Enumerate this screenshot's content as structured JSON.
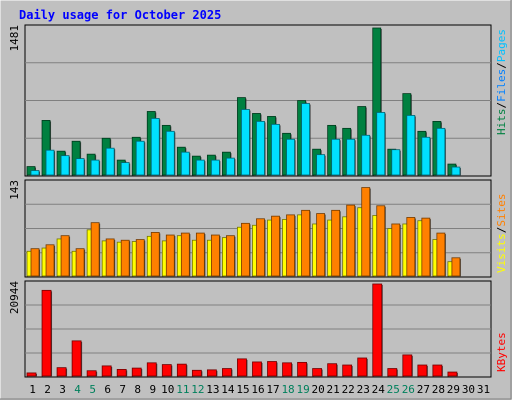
{
  "chart_data": {
    "type": "bar",
    "title": "Daily usage for October 2025",
    "categories": [
      "1",
      "2",
      "3",
      "4",
      "5",
      "6",
      "7",
      "8",
      "9",
      "10",
      "11",
      "12",
      "13",
      "14",
      "15",
      "16",
      "17",
      "18",
      "19",
      "20",
      "21",
      "22",
      "23",
      "24",
      "25",
      "26",
      "27",
      "28",
      "29",
      "30",
      "31"
    ],
    "weekend_days": [
      "4",
      "5",
      "11",
      "12",
      "18",
      "19",
      "25",
      "26"
    ],
    "panels": [
      {
        "name": "hits-files-pages",
        "ymax_label": "1481",
        "ymax": 1481,
        "series": [
          {
            "name": "Hits",
            "color": "#008040",
            "values": [
              85,
              550,
              240,
              340,
              210,
              370,
              150,
              380,
              640,
              500,
              280,
              190,
              200,
              230,
              780,
              620,
              590,
              420,
              750,
              260,
              500,
              470,
              690,
              1481,
              260,
              820,
              440,
              540,
              110,
              0,
              0
            ]
          },
          {
            "name": "Files",
            "color": "#00e0ff",
            "values": [
              45,
              250,
              195,
              165,
              150,
              270,
              125,
              340,
              570,
              440,
              230,
              150,
              150,
              170,
              660,
              540,
              510,
              360,
              720,
              205,
              360,
              360,
              400,
              630,
              255,
              600,
              380,
              470,
              80,
              0,
              0
            ]
          },
          {
            "name": "Pages",
            "color": "#00c0ff",
            "values": [
              0,
              0,
              0,
              0,
              0,
              0,
              0,
              0,
              0,
              0,
              0,
              0,
              0,
              0,
              0,
              0,
              0,
              0,
              0,
              0,
              0,
              0,
              0,
              0,
              0,
              0,
              0,
              0,
              0,
              0,
              0
            ]
          }
        ]
      },
      {
        "name": "visits-sites",
        "ymax_label": "143",
        "ymax": 143,
        "series": [
          {
            "name": "Visits",
            "color": "#ffff00",
            "values": [
              38,
              43,
              57,
              38,
              71,
              54,
              52,
              53,
              61,
              54,
              62,
              55,
              55,
              59,
              75,
              78,
              86,
              87,
              94,
              80,
              86,
              91,
              105,
              93,
              73,
              80,
              85,
              56,
              22,
              0,
              0
            ]
          },
          {
            "name": "Sites",
            "color": "#ff8000",
            "values": [
              42,
              48,
              62,
              42,
              82,
              57,
              55,
              56,
              67,
              63,
              66,
              66,
              63,
              62,
              81,
              88,
              92,
              94,
              101,
              96,
              101,
              109,
              136,
              108,
              80,
              90,
              89,
              66,
              28,
              0,
              0
            ]
          }
        ]
      },
      {
        "name": "kbytes",
        "ymax_label": "20944",
        "ymax": 20944,
        "series": [
          {
            "name": "KBytes",
            "color": "#ff0000",
            "values": [
              700,
              19500,
              1900,
              8000,
              1200,
              2300,
              1500,
              1800,
              3000,
              2600,
              2700,
              1300,
              1400,
              1700,
              3900,
              3200,
              3300,
              3000,
              3100,
              1700,
              2800,
              2500,
              4100,
              20944,
              1700,
              4800,
              2500,
              2500,
              900,
              0,
              0
            ]
          }
        ]
      }
    ],
    "legends": {
      "top": [
        {
          "label": "Hits",
          "color": "#008040"
        },
        {
          "label": "/",
          "color": "#000000"
        },
        {
          "label": "Files",
          "color": "#0080ff"
        },
        {
          "label": "/",
          "color": "#000000"
        },
        {
          "label": "Pages",
          "color": "#00c0ff"
        }
      ],
      "mid": [
        {
          "label": "Visits",
          "color": "#ffff00"
        },
        {
          "label": "/",
          "color": "#000000"
        },
        {
          "label": "Sites",
          "color": "#ff8000"
        }
      ],
      "bot": [
        {
          "label": "KBytes",
          "color": "#ff0000"
        }
      ]
    }
  },
  "colors": {
    "background": "#c0c0c0",
    "title": "#0000ff",
    "plot_bg": "#c0c0c0",
    "grid": "#808080",
    "weekday_label": "#000000",
    "weekend_label": "#00805c"
  }
}
